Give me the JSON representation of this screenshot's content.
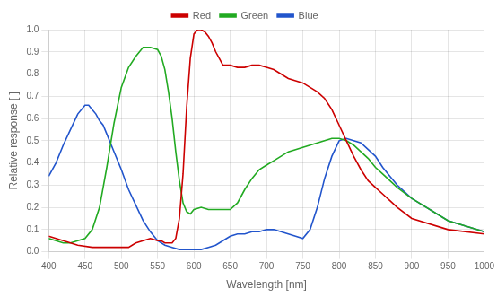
{
  "chart_data": {
    "type": "line",
    "x_label": "Wavelength [nm]",
    "y_label": "Relative response [ ]",
    "xlim": [
      400,
      1000
    ],
    "ylim": [
      0.0,
      1.0
    ],
    "xticks": [
      400,
      450,
      500,
      550,
      600,
      650,
      700,
      750,
      800,
      850,
      900,
      950,
      1000
    ],
    "yticks": [
      {
        "value": 0.0,
        "label": "0.0"
      },
      0.1,
      0.2,
      0.3,
      0.4,
      0.5,
      0.6,
      0.7,
      0.8,
      0.9,
      {
        "value": 1.0,
        "label": "1.0"
      }
    ],
    "grid": true,
    "legend": "top",
    "series": [
      {
        "name": "Red",
        "color": "#cc0000",
        "x": [
          400,
          420,
          440,
          460,
          480,
          500,
          510,
          520,
          530,
          540,
          550,
          555,
          560,
          565,
          570,
          575,
          580,
          585,
          590,
          595,
          600,
          605,
          610,
          615,
          620,
          625,
          630,
          635,
          640,
          650,
          660,
          670,
          680,
          690,
          700,
          710,
          720,
          730,
          740,
          750,
          760,
          770,
          780,
          790,
          800,
          810,
          820,
          830,
          840,
          850,
          860,
          870,
          880,
          900,
          950,
          1000
        ],
        "values": [
          0.07,
          0.05,
          0.03,
          0.02,
          0.02,
          0.02,
          0.02,
          0.04,
          0.05,
          0.06,
          0.05,
          0.05,
          0.04,
          0.04,
          0.04,
          0.06,
          0.15,
          0.35,
          0.65,
          0.87,
          0.98,
          1.0,
          1.0,
          0.99,
          0.97,
          0.94,
          0.9,
          0.87,
          0.84,
          0.84,
          0.83,
          0.83,
          0.84,
          0.84,
          0.83,
          0.82,
          0.8,
          0.78,
          0.77,
          0.76,
          0.74,
          0.72,
          0.69,
          0.64,
          0.57,
          0.5,
          0.43,
          0.37,
          0.32,
          0.29,
          0.26,
          0.23,
          0.2,
          0.15,
          0.1,
          0.08
        ]
      },
      {
        "name": "Green",
        "color": "#22aa22",
        "x": [
          400,
          410,
          420,
          430,
          440,
          450,
          460,
          470,
          480,
          490,
          500,
          510,
          520,
          530,
          540,
          550,
          555,
          560,
          565,
          570,
          575,
          580,
          585,
          590,
          595,
          600,
          610,
          620,
          630,
          640,
          650,
          660,
          670,
          680,
          690,
          700,
          710,
          720,
          730,
          740,
          750,
          760,
          770,
          780,
          790,
          800,
          810,
          820,
          830,
          840,
          850,
          860,
          870,
          880,
          900,
          950,
          1000
        ],
        "values": [
          0.06,
          0.05,
          0.04,
          0.04,
          0.05,
          0.06,
          0.1,
          0.2,
          0.38,
          0.58,
          0.74,
          0.83,
          0.88,
          0.92,
          0.92,
          0.91,
          0.88,
          0.82,
          0.72,
          0.6,
          0.45,
          0.32,
          0.22,
          0.18,
          0.17,
          0.19,
          0.2,
          0.19,
          0.19,
          0.19,
          0.19,
          0.22,
          0.28,
          0.33,
          0.37,
          0.39,
          0.41,
          0.43,
          0.45,
          0.46,
          0.47,
          0.48,
          0.49,
          0.5,
          0.51,
          0.51,
          0.5,
          0.48,
          0.45,
          0.42,
          0.38,
          0.35,
          0.32,
          0.29,
          0.24,
          0.14,
          0.09
        ]
      },
      {
        "name": "Blue",
        "color": "#2255cc",
        "x": [
          400,
          410,
          420,
          430,
          440,
          450,
          455,
          460,
          465,
          470,
          475,
          480,
          490,
          500,
          510,
          520,
          530,
          540,
          550,
          560,
          570,
          580,
          590,
          600,
          610,
          620,
          630,
          640,
          650,
          660,
          670,
          680,
          690,
          700,
          710,
          720,
          730,
          740,
          750,
          760,
          770,
          780,
          790,
          800,
          810,
          820,
          830,
          840,
          850,
          860,
          870,
          880,
          900,
          950,
          1000
        ],
        "values": [
          0.34,
          0.4,
          0.48,
          0.55,
          0.62,
          0.66,
          0.66,
          0.64,
          0.62,
          0.59,
          0.57,
          0.53,
          0.45,
          0.37,
          0.28,
          0.21,
          0.14,
          0.09,
          0.05,
          0.03,
          0.02,
          0.01,
          0.01,
          0.01,
          0.01,
          0.02,
          0.03,
          0.05,
          0.07,
          0.08,
          0.08,
          0.09,
          0.09,
          0.1,
          0.1,
          0.09,
          0.08,
          0.07,
          0.06,
          0.1,
          0.2,
          0.33,
          0.43,
          0.5,
          0.51,
          0.5,
          0.49,
          0.46,
          0.43,
          0.38,
          0.34,
          0.3,
          0.24,
          0.14,
          0.09
        ]
      }
    ]
  }
}
